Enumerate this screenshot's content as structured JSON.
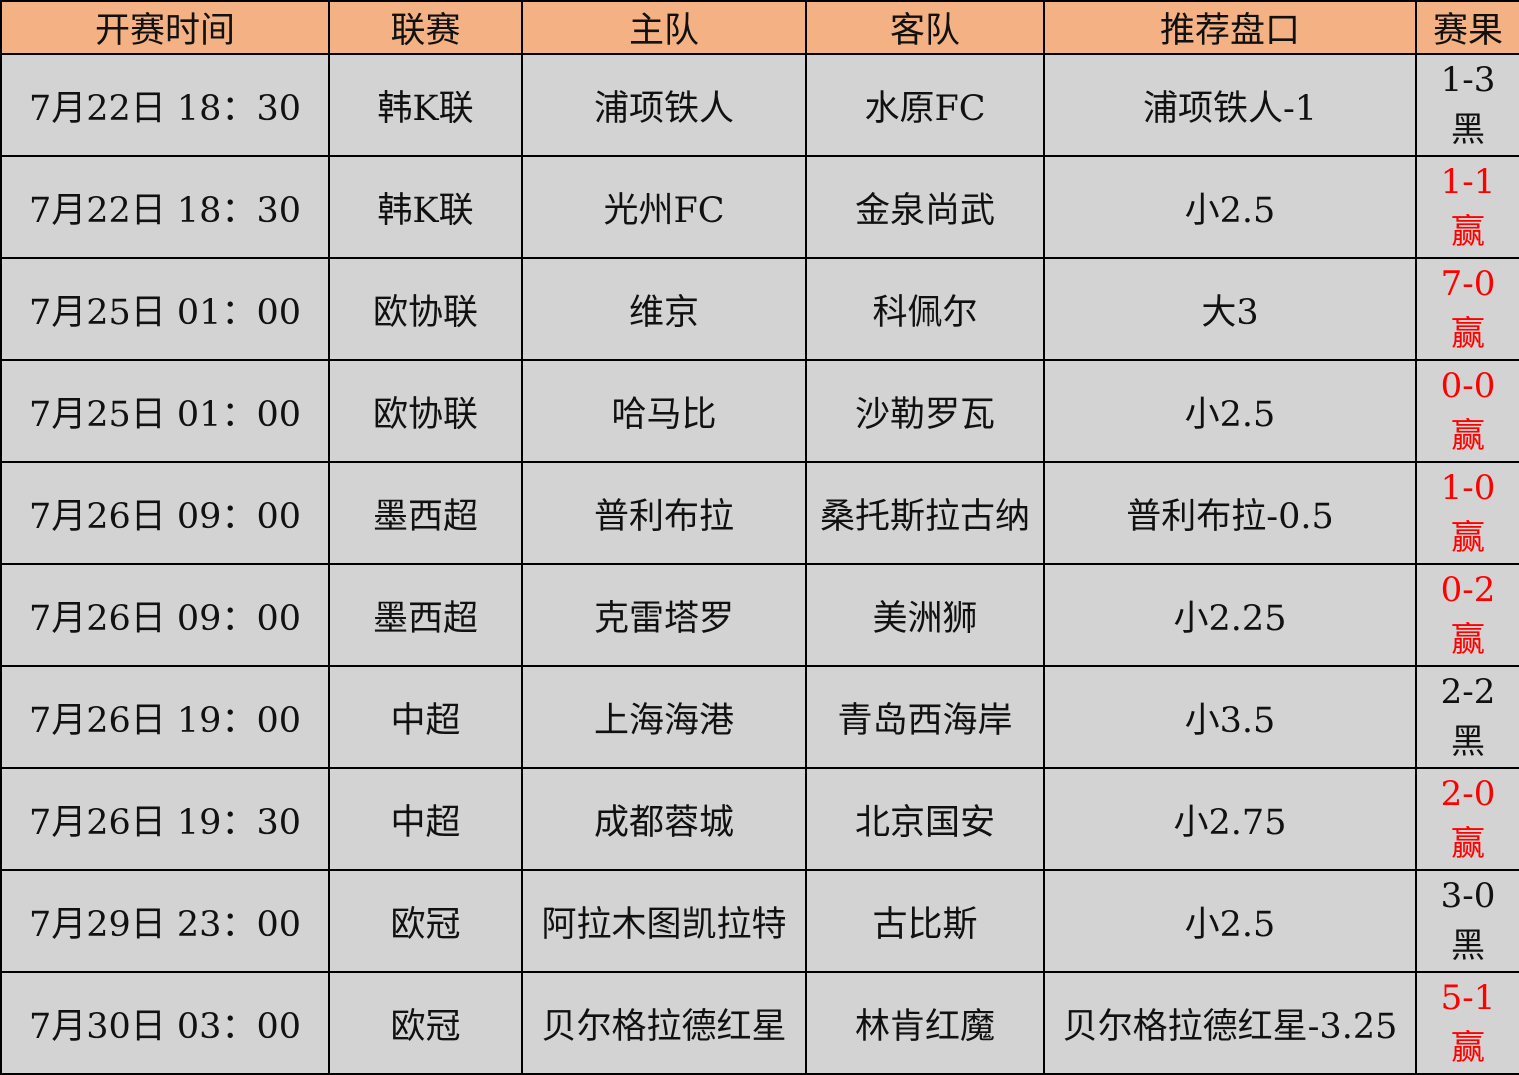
{
  "headers": [
    "开赛时间",
    "联赛",
    "主队",
    "客队",
    "推荐盘口",
    "赛果"
  ],
  "colors": {
    "header_bg": "#f4b183",
    "body_bg": "#d4d3d3",
    "win": "#ff0000",
    "lose": "#111111"
  },
  "rows": [
    {
      "time": "7月22日 18：30",
      "league": "韩K联",
      "home": "浦项铁人",
      "away": "水原FC",
      "tip": "浦项铁人-1",
      "score": "1-3",
      "result": "黑"
    },
    {
      "time": "7月22日 18：30",
      "league": "韩K联",
      "home": "光州FC",
      "away": "金泉尚武",
      "tip": "小2.5",
      "score": "1-1",
      "result": "赢"
    },
    {
      "time": "7月25日 01：00",
      "league": "欧协联",
      "home": "维京",
      "away": "科佩尔",
      "tip": "大3",
      "score": "7-0",
      "result": "赢"
    },
    {
      "time": "7月25日 01：00",
      "league": "欧协联",
      "home": "哈马比",
      "away": "沙勒罗瓦",
      "tip": "小2.5",
      "score": "0-0",
      "result": "赢"
    },
    {
      "time": "7月26日 09：00",
      "league": "墨西超",
      "home": "普利布拉",
      "away": "桑托斯拉古纳",
      "tip": "普利布拉-0.5",
      "score": "1-0",
      "result": "赢"
    },
    {
      "time": "7月26日 09：00",
      "league": "墨西超",
      "home": "克雷塔罗",
      "away": "美洲狮",
      "tip": "小2.25",
      "score": "0-2",
      "result": "赢"
    },
    {
      "time": "7月26日 19：00",
      "league": "中超",
      "home": "上海海港",
      "away": "青岛西海岸",
      "tip": "小3.5",
      "score": "2-2",
      "result": "黑"
    },
    {
      "time": "7月26日 19：30",
      "league": "中超",
      "home": "成都蓉城",
      "away": "北京国安",
      "tip": "小2.75",
      "score": "2-0",
      "result": "赢"
    },
    {
      "time": "7月29日 23：00",
      "league": "欧冠",
      "home": "阿拉木图凯拉特",
      "away": "古比斯",
      "tip": "小2.5",
      "score": "3-0",
      "result": "黑"
    },
    {
      "time": "7月30日 03：00",
      "league": "欧冠",
      "home": "贝尔格拉德红星",
      "away": "林肯红魔",
      "tip": "贝尔格拉德红星-3.25",
      "score": "5-1",
      "result": "赢"
    }
  ]
}
